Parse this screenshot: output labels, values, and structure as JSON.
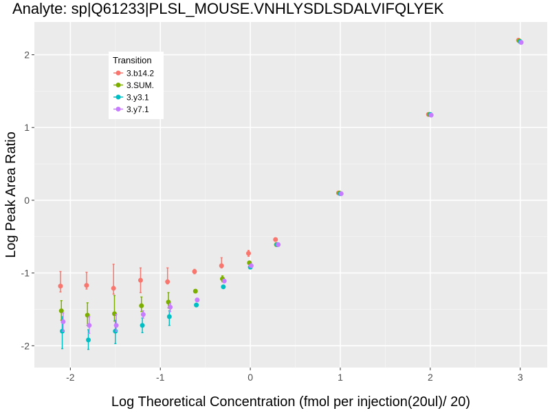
{
  "chart_data": {
    "type": "scatter",
    "title": "Analyte: sp|Q61233|PLSL_MOUSE.VNHLYSDLSDALVIFQLYEK",
    "xlabel": "Log Theoretical Concentration (fmol per injection(20ul)/ 20)",
    "ylabel": "Log Peak Area Ratio",
    "xlim": [
      -2.4,
      3.3
    ],
    "ylim": [
      -2.3,
      2.45
    ],
    "x_ticks": [
      -2,
      -1,
      0,
      1,
      2,
      3
    ],
    "x_tick_labels": [
      "-2",
      "-1",
      "0",
      "1",
      "2",
      "3"
    ],
    "y_ticks": [
      -2,
      -1,
      0,
      1,
      2
    ],
    "y_tick_labels": [
      "-2",
      "-1",
      "0",
      "1",
      "2"
    ],
    "grid": true,
    "legend_position": "top-left-inside",
    "legend_title": "Transition",
    "series": [
      {
        "name": "3.b14.2",
        "color": "#F8766D",
        "points": [
          {
            "x": -2.11,
            "y": -1.18,
            "lo": -1.26,
            "hi": -0.98
          },
          {
            "x": -1.82,
            "y": -1.17,
            "lo": -1.22,
            "hi": -0.99
          },
          {
            "x": -1.52,
            "y": -1.21,
            "lo": -1.29,
            "hi": -0.88
          },
          {
            "x": -1.22,
            "y": -1.1,
            "lo": -1.27,
            "hi": -0.93
          },
          {
            "x": -0.92,
            "y": -1.12,
            "lo": -1.15,
            "hi": -0.93
          },
          {
            "x": -0.62,
            "y": -0.98,
            "lo": -1.01,
            "hi": -0.95
          },
          {
            "x": -0.32,
            "y": -0.9,
            "lo": -0.93,
            "hi": -0.79
          },
          {
            "x": -0.02,
            "y": -0.73,
            "lo": -0.77,
            "hi": -0.69
          },
          {
            "x": 0.28,
            "y": -0.54,
            "lo": -0.54,
            "hi": -0.54
          },
          {
            "x": 0.98,
            "y": 0.1,
            "lo": 0.1,
            "hi": 0.1
          },
          {
            "x": 1.98,
            "y": 1.18,
            "lo": 1.18,
            "hi": 1.18
          },
          {
            "x": 2.98,
            "y": 2.2,
            "lo": 2.2,
            "hi": 2.2
          }
        ]
      },
      {
        "name": "3.SUM.",
        "color": "#7CAE00",
        "points": [
          {
            "x": -2.1,
            "y": -1.52,
            "lo": -1.65,
            "hi": -1.38
          },
          {
            "x": -1.81,
            "y": -1.58,
            "lo": -1.72,
            "hi": -1.41
          },
          {
            "x": -1.51,
            "y": -1.56,
            "lo": -1.66,
            "hi": -1.31
          },
          {
            "x": -1.21,
            "y": -1.45,
            "lo": -1.53,
            "hi": -1.33
          },
          {
            "x": -0.91,
            "y": -1.4,
            "lo": -1.48,
            "hi": -1.27
          },
          {
            "x": -0.61,
            "y": -1.25,
            "lo": -1.26,
            "hi": -1.24
          },
          {
            "x": -0.31,
            "y": -1.08,
            "lo": -1.12,
            "hi": -1.04
          },
          {
            "x": -0.01,
            "y": -0.86,
            "lo": -0.88,
            "hi": -0.84
          },
          {
            "x": 0.29,
            "y": -0.61,
            "lo": -0.61,
            "hi": -0.61
          },
          {
            "x": 0.99,
            "y": 0.1,
            "lo": 0.1,
            "hi": 0.1
          },
          {
            "x": 1.99,
            "y": 1.18,
            "lo": 1.18,
            "hi": 1.18
          },
          {
            "x": 2.99,
            "y": 2.19,
            "lo": 2.19,
            "hi": 2.19
          }
        ]
      },
      {
        "name": "3.y3.1",
        "color": "#00BFC4",
        "points": [
          {
            "x": -2.09,
            "y": -1.8,
            "lo": -2.04,
            "hi": -1.6
          },
          {
            "x": -1.8,
            "y": -1.92,
            "lo": -2.05,
            "hi": -1.78
          },
          {
            "x": -1.5,
            "y": -1.8,
            "lo": -1.97,
            "hi": -1.65
          },
          {
            "x": -1.2,
            "y": -1.72,
            "lo": -1.82,
            "hi": -1.62
          },
          {
            "x": -0.9,
            "y": -1.6,
            "lo": -1.72,
            "hi": -1.52
          },
          {
            "x": -0.6,
            "y": -1.44,
            "lo": -1.46,
            "hi": -1.42
          },
          {
            "x": -0.3,
            "y": -1.19,
            "lo": -1.21,
            "hi": -1.17
          },
          {
            "x": 0.0,
            "y": -0.92,
            "lo": -0.93,
            "hi": -0.91
          },
          {
            "x": 0.3,
            "y": -0.61,
            "lo": -0.61,
            "hi": -0.61
          },
          {
            "x": 1.0,
            "y": 0.09,
            "lo": 0.09,
            "hi": 0.09
          },
          {
            "x": 2.0,
            "y": 1.18,
            "lo": 1.18,
            "hi": 1.18
          },
          {
            "x": 3.0,
            "y": 2.18,
            "lo": 2.18,
            "hi": 2.18
          }
        ]
      },
      {
        "name": "3.y7.1",
        "color": "#C77CFF",
        "points": [
          {
            "x": -2.08,
            "y": -1.67,
            "lo": -1.8,
            "hi": -1.55
          },
          {
            "x": -1.79,
            "y": -1.72,
            "lo": -1.83,
            "hi": -1.6
          },
          {
            "x": -1.49,
            "y": -1.72,
            "lo": -1.8,
            "hi": -1.57
          },
          {
            "x": -1.19,
            "y": -1.57,
            "lo": -1.62,
            "hi": -1.52
          },
          {
            "x": -0.89,
            "y": -1.47,
            "lo": -1.53,
            "hi": -1.42
          },
          {
            "x": -0.59,
            "y": -1.37,
            "lo": -1.39,
            "hi": -1.35
          },
          {
            "x": -0.29,
            "y": -1.11,
            "lo": -1.13,
            "hi": -1.09
          },
          {
            "x": 0.01,
            "y": -0.9,
            "lo": -0.91,
            "hi": -0.89
          },
          {
            "x": 0.31,
            "y": -0.61,
            "lo": -0.61,
            "hi": -0.61
          },
          {
            "x": 1.01,
            "y": 0.09,
            "lo": 0.09,
            "hi": 0.09
          },
          {
            "x": 2.01,
            "y": 1.17,
            "lo": 1.17,
            "hi": 1.17
          },
          {
            "x": 3.01,
            "y": 2.17,
            "lo": 2.17,
            "hi": 2.17
          }
        ]
      }
    ]
  }
}
